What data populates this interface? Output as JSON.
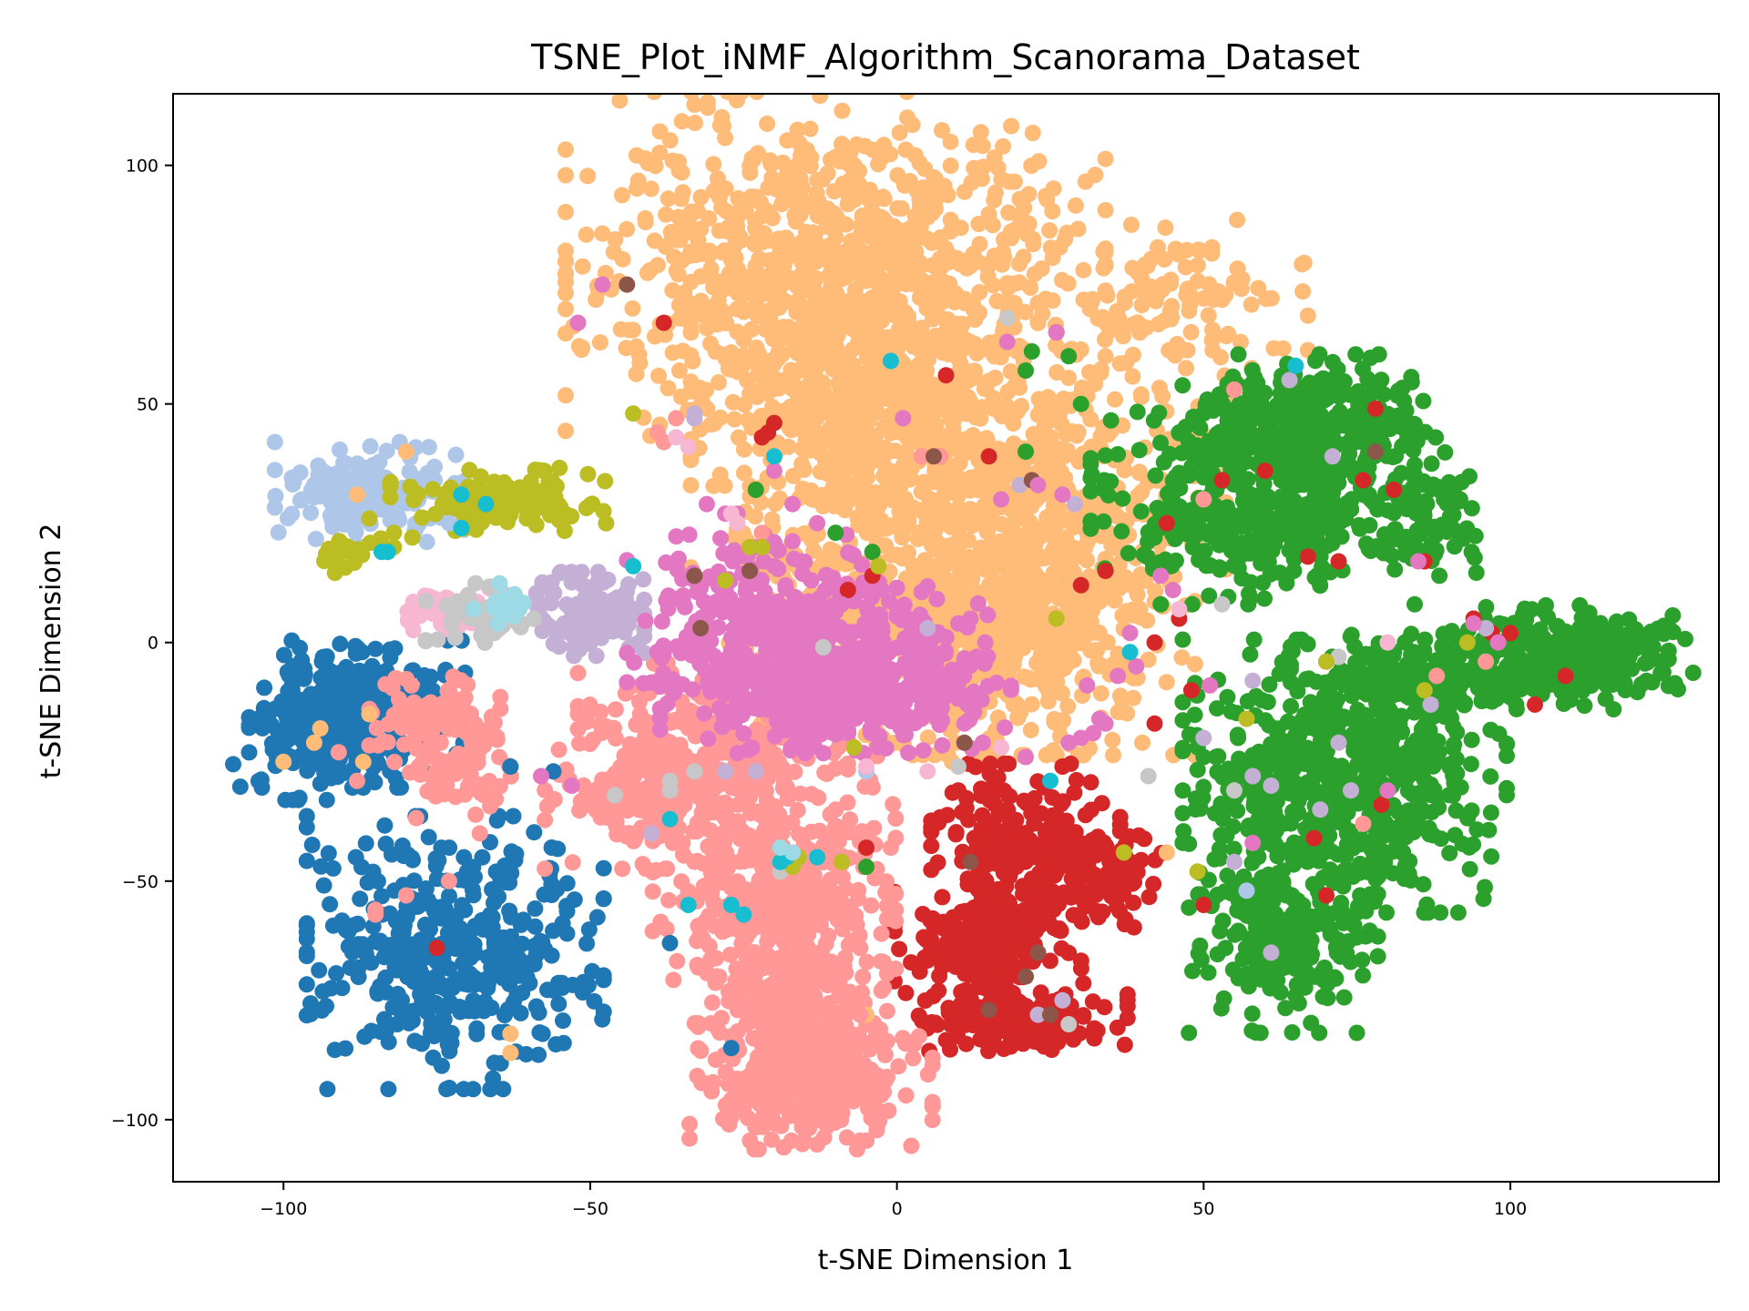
{
  "chart_data": {
    "type": "scatter",
    "title": "TSNE_Plot_iNMF_Algorithm_Scanorama_Dataset",
    "xlabel": "t-SNE Dimension 1",
    "ylabel": "t-SNE Dimension 2",
    "xlim": [
      -118,
      134
    ],
    "ylim": [
      -113,
      115
    ],
    "xticks": [
      -100,
      -50,
      0,
      50,
      100
    ],
    "yticks": [
      -100,
      -50,
      0,
      50,
      100
    ],
    "xtick_labels": [
      "−100",
      "−50",
      "0",
      "50",
      "100"
    ],
    "ytick_labels": [
      "−100",
      "−50",
      "0",
      "50",
      "100"
    ],
    "grid": false,
    "legend": "none",
    "series": [
      {
        "color": "#1f77b4",
        "clusters": [
          [
            -88,
            -15,
            8,
            7,
            300
          ],
          [
            -72,
            -65,
            11,
            13,
            420
          ],
          [
            -95,
            -22,
            6,
            5,
            80
          ]
        ],
        "points": [
          [
            -63,
            -26
          ],
          [
            -56,
            -27
          ],
          [
            -27,
            -85
          ],
          [
            -37,
            -63
          ]
        ]
      },
      {
        "color": "#aec7e8",
        "clusters": [
          [
            -86,
            31,
            7,
            5,
            160
          ]
        ],
        "points": [
          [
            -97,
            30
          ],
          [
            -73,
            25
          ],
          [
            -18,
            -44
          ],
          [
            57,
            -52
          ],
          [
            -5,
            -27
          ]
        ]
      },
      {
        "color": "#ff7f0e",
        "clusters": [],
        "points": []
      },
      {
        "color": "#ffbb78",
        "clusters": [
          [
            -10,
            78,
            20,
            17,
            900
          ],
          [
            -5,
            45,
            13,
            18,
            600
          ],
          [
            25,
            35,
            13,
            12,
            300
          ],
          [
            20,
            5,
            13,
            13,
            450
          ],
          [
            5,
            5,
            15,
            12,
            350
          ],
          [
            45,
            72,
            10,
            8,
            120
          ]
        ],
        "points": [
          [
            -80,
            40
          ],
          [
            -88,
            31
          ],
          [
            -100,
            -25
          ],
          [
            -95,
            -21
          ],
          [
            -94,
            -18
          ],
          [
            -87,
            -25
          ],
          [
            -86,
            -15
          ],
          [
            -63,
            -82
          ],
          [
            -63,
            -86
          ],
          [
            -6,
            -64
          ],
          [
            -5,
            -78
          ],
          [
            9,
            -25
          ],
          [
            40,
            -21
          ],
          [
            44,
            -44
          ]
        ]
      },
      {
        "color": "#2ca02c",
        "clusters": [
          [
            58,
            30,
            12,
            10,
            400
          ],
          [
            68,
            45,
            10,
            7,
            300
          ],
          [
            73,
            -28,
            12,
            13,
            600
          ],
          [
            95,
            -7,
            14,
            4,
            250
          ],
          [
            110,
            -1,
            9,
            4,
            200
          ],
          [
            63,
            -62,
            7,
            9,
            250
          ],
          [
            87,
            25,
            4,
            5,
            70
          ]
        ],
        "points": [
          [
            22,
            61
          ],
          [
            21,
            57
          ],
          [
            28,
            60
          ],
          [
            30,
            50
          ],
          [
            21,
            40
          ],
          [
            -4,
            19
          ],
          [
            -10,
            23
          ],
          [
            -23,
            32
          ],
          [
            -5,
            -47
          ],
          [
            42,
            22
          ],
          [
            43,
            8
          ]
        ]
      },
      {
        "color": "#98df8a",
        "clusters": [],
        "points": []
      },
      {
        "color": "#d62728",
        "clusters": [
          [
            21,
            -43,
            7,
            8,
            220
          ],
          [
            15,
            -65,
            7,
            6,
            200
          ],
          [
            20,
            -79,
            8,
            3,
            160
          ],
          [
            33,
            -49,
            5,
            5,
            90
          ]
        ],
        "points": [
          [
            -75,
            -64
          ],
          [
            -38,
            67
          ],
          [
            -20,
            46
          ],
          [
            -21,
            44
          ],
          [
            -22,
            43
          ],
          [
            -8,
            11
          ],
          [
            7,
            39
          ],
          [
            15,
            39
          ],
          [
            8,
            56
          ],
          [
            26,
            65
          ],
          [
            30,
            12
          ],
          [
            34,
            15
          ],
          [
            44,
            25
          ],
          [
            46,
            5
          ],
          [
            42,
            -17
          ],
          [
            42,
            0
          ],
          [
            48,
            -10
          ],
          [
            50,
            -55
          ],
          [
            53,
            34
          ],
          [
            60,
            36
          ],
          [
            76,
            34
          ],
          [
            78,
            49
          ],
          [
            81,
            32
          ],
          [
            86,
            17
          ],
          [
            94,
            5
          ],
          [
            100,
            2
          ],
          [
            104,
            -13
          ],
          [
            109,
            -7
          ],
          [
            97,
            2
          ],
          [
            67,
            18
          ],
          [
            72,
            17
          ],
          [
            68,
            -41
          ],
          [
            79,
            -34
          ],
          [
            70,
            -53
          ],
          [
            -5,
            -43
          ],
          [
            10,
            -31
          ],
          [
            27,
            -26
          ],
          [
            -4,
            14
          ]
        ]
      },
      {
        "color": "#ff9896",
        "clusters": [
          [
            -30,
            -22,
            10,
            8,
            250
          ],
          [
            -20,
            -48,
            9,
            11,
            350
          ],
          [
            -17,
            -78,
            7,
            12,
            350
          ],
          [
            -14,
            -93,
            9,
            6,
            250
          ],
          [
            -42,
            -32,
            7,
            7,
            150
          ],
          [
            -72,
            -28,
            5,
            4,
            60
          ],
          [
            -75,
            -15,
            5,
            5,
            90
          ]
        ],
        "points": [
          [
            -85,
            -56
          ],
          [
            -85,
            -57
          ],
          [
            -80,
            -53
          ],
          [
            -73,
            -50
          ],
          [
            -68,
            -40
          ],
          [
            -88,
            -29
          ],
          [
            -91,
            -23
          ],
          [
            -36,
            47
          ],
          [
            -39,
            44
          ],
          [
            -38,
            42
          ],
          [
            -22,
            23
          ],
          [
            7,
            39
          ],
          [
            4,
            39
          ],
          [
            -1,
            -43
          ],
          [
            -6,
            -64
          ],
          [
            -6,
            -78
          ],
          [
            55,
            53
          ],
          [
            50,
            30
          ],
          [
            88,
            -7
          ],
          [
            96,
            -4
          ],
          [
            76,
            -38
          ]
        ]
      },
      {
        "color": "#9467bd",
        "clusters": [],
        "points": []
      },
      {
        "color": "#c5b0d5",
        "clusters": [
          [
            -50,
            6,
            4,
            4,
            120
          ]
        ],
        "points": [
          [
            -33,
            47
          ],
          [
            -33,
            48
          ],
          [
            -40,
            -40
          ],
          [
            -28,
            -27
          ],
          [
            -23,
            -27
          ],
          [
            -37,
            -31
          ],
          [
            5,
            3
          ],
          [
            20,
            33
          ],
          [
            29,
            29
          ],
          [
            50,
            -20
          ],
          [
            58,
            -8
          ],
          [
            61,
            -30
          ],
          [
            64,
            55
          ],
          [
            71,
            39
          ],
          [
            72,
            -21
          ],
          [
            74,
            -31
          ],
          [
            87,
            -13
          ],
          [
            96,
            3
          ],
          [
            69,
            -35
          ],
          [
            61,
            -65
          ],
          [
            58,
            -28
          ],
          [
            55,
            -46
          ],
          [
            27,
            -75
          ],
          [
            23,
            -78
          ]
        ]
      },
      {
        "color": "#8c564b",
        "clusters": [],
        "points": [
          [
            -44,
            75
          ],
          [
            -24,
            15
          ],
          [
            6,
            39
          ],
          [
            22,
            34
          ],
          [
            11,
            -21
          ],
          [
            12,
            -46
          ],
          [
            15,
            -77
          ],
          [
            21,
            -70
          ],
          [
            23,
            -65
          ],
          [
            25,
            -78
          ],
          [
            78,
            40
          ],
          [
            -33,
            14
          ],
          [
            -32,
            3
          ]
        ]
      },
      {
        "color": "#c49c94",
        "clusters": [],
        "points": []
      },
      {
        "color": "#e377c2",
        "clusters": [
          [
            -22,
            5,
            10,
            8,
            250
          ],
          [
            -10,
            -10,
            13,
            6,
            400
          ],
          [
            -5,
            -5,
            9,
            8,
            200
          ]
        ],
        "points": [
          [
            -48,
            75
          ],
          [
            -52,
            67
          ],
          [
            -31,
            29
          ],
          [
            -28,
            27
          ],
          [
            -26,
            27
          ],
          [
            -20,
            36
          ],
          [
            -20,
            21
          ],
          [
            -17,
            29
          ],
          [
            -13,
            25
          ],
          [
            -9,
            8
          ],
          [
            1,
            47
          ],
          [
            10,
            4
          ],
          [
            12,
            5
          ],
          [
            17,
            30
          ],
          [
            18,
            63
          ],
          [
            23,
            33
          ],
          [
            26,
            65
          ],
          [
            27,
            31
          ],
          [
            28,
            -21
          ],
          [
            30,
            -20
          ],
          [
            31,
            -9
          ],
          [
            33,
            -16
          ],
          [
            34,
            -17
          ],
          [
            36,
            -7
          ],
          [
            38,
            2
          ],
          [
            39,
            -5
          ],
          [
            45,
            11
          ],
          [
            43,
            14
          ],
          [
            51,
            -9
          ],
          [
            58,
            -42
          ],
          [
            70,
            -4
          ],
          [
            80,
            -31
          ],
          [
            85,
            17
          ],
          [
            94,
            4
          ],
          [
            98,
            0
          ],
          [
            -53,
            -30
          ],
          [
            -58,
            -28
          ],
          [
            -20,
            16
          ],
          [
            14,
            -21
          ],
          [
            11,
            -17
          ],
          [
            21,
            -24
          ],
          [
            32,
            -19
          ]
        ]
      },
      {
        "color": "#f7b6d2",
        "clusters": [
          [
            -72,
            7,
            4,
            2,
            50
          ]
        ],
        "points": [
          [
            -34,
            41
          ],
          [
            -36,
            43
          ],
          [
            -27,
            27
          ],
          [
            -26,
            25
          ],
          [
            -5,
            -26
          ],
          [
            5,
            -27
          ],
          [
            17,
            -22
          ],
          [
            46,
            7
          ],
          [
            80,
            0
          ]
        ]
      },
      {
        "color": "#7f7f7f",
        "clusters": [],
        "points": []
      },
      {
        "color": "#c7c7c7",
        "clusters": [
          [
            -68,
            6,
            4,
            3,
            40
          ]
        ],
        "points": [
          [
            -72,
            1
          ],
          [
            -46,
            -32
          ],
          [
            -33,
            -27
          ],
          [
            -37,
            -29
          ],
          [
            -37,
            -31
          ],
          [
            18,
            68
          ],
          [
            28,
            -80
          ],
          [
            41,
            -28
          ],
          [
            72,
            -3
          ],
          [
            55,
            -31
          ],
          [
            -12,
            -1
          ],
          [
            -19,
            -48
          ],
          [
            53,
            8
          ],
          [
            10,
            -26
          ]
        ]
      },
      {
        "color": "#bcbd22",
        "clusters": [
          [
            -65,
            30,
            8,
            3,
            130
          ],
          [
            -89,
            19,
            3,
            2,
            20
          ]
        ],
        "points": [
          [
            -86,
            26
          ],
          [
            -82,
            23
          ],
          [
            -79,
            22
          ],
          [
            -82,
            20
          ],
          [
            -43,
            48
          ],
          [
            -24,
            20
          ],
          [
            -22,
            20
          ],
          [
            -3,
            16
          ],
          [
            -7,
            -22
          ],
          [
            -9,
            -46
          ],
          [
            26,
            5
          ],
          [
            37,
            -44
          ],
          [
            49,
            -48
          ],
          [
            57,
            -16
          ],
          [
            93,
            0
          ],
          [
            86,
            -10
          ],
          [
            70,
            -4
          ],
          [
            -28,
            13
          ],
          [
            -16,
            -45
          ],
          [
            -17,
            -47
          ]
        ]
      },
      {
        "color": "#dbdb8d",
        "clusters": [],
        "points": []
      },
      {
        "color": "#17becf",
        "clusters": [],
        "points": [
          [
            -71,
            31
          ],
          [
            -67,
            29
          ],
          [
            -71,
            24
          ],
          [
            -84,
            19
          ],
          [
            -83,
            19
          ],
          [
            -43,
            16
          ],
          [
            -37,
            -37
          ],
          [
            -34,
            -55
          ],
          [
            -27,
            -55
          ],
          [
            -25,
            -57
          ],
          [
            -18,
            -45
          ],
          [
            -20,
            39
          ],
          [
            -1,
            59
          ],
          [
            25,
            -29
          ],
          [
            38,
            -2
          ],
          [
            65,
            58
          ],
          [
            -13,
            -45
          ],
          [
            -19,
            -46
          ]
        ]
      },
      {
        "color": "#9edae5",
        "clusters": [
          [
            -64,
            8,
            2,
            2,
            15
          ]
        ],
        "points": [
          [
            -65,
            4
          ],
          [
            -69,
            7
          ],
          [
            -19,
            -43
          ],
          [
            -17,
            -44
          ]
        ]
      }
    ]
  }
}
